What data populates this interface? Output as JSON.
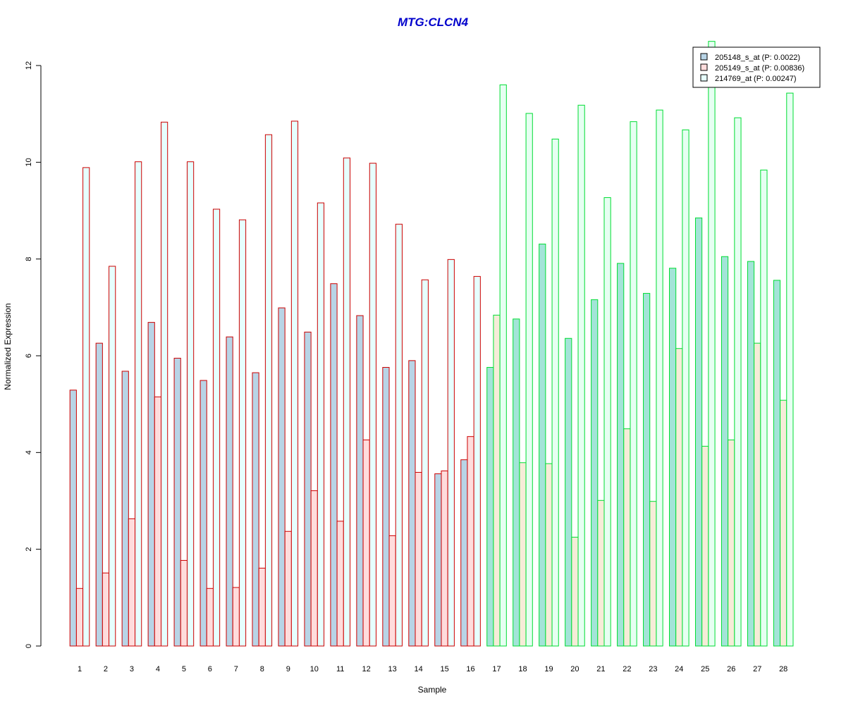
{
  "chart_data": {
    "type": "bar",
    "title": "MTG:CLCN4",
    "xlabel": "Sample",
    "ylabel": "Normalized Expression",
    "ylim": [
      0,
      12
    ],
    "yticks": [
      0,
      2,
      4,
      6,
      8,
      10,
      12
    ],
    "categories": [
      "1",
      "2",
      "3",
      "4",
      "5",
      "6",
      "7",
      "8",
      "9",
      "10",
      "11",
      "12",
      "13",
      "14",
      "15",
      "16",
      "17",
      "18",
      "19",
      "20",
      "21",
      "22",
      "23",
      "24",
      "25",
      "26",
      "27",
      "28"
    ],
    "series": [
      {
        "name": "205148_s_at (P: 0.0022)",
        "values": [
          5.29,
          6.26,
          5.68,
          6.69,
          5.95,
          5.49,
          6.39,
          5.65,
          6.99,
          6.49,
          7.49,
          6.83,
          5.76,
          5.9,
          3.56,
          3.85,
          5.76,
          6.76,
          8.31,
          6.36,
          7.16,
          7.91,
          7.29,
          7.81,
          8.85,
          8.05,
          7.95,
          7.56
        ]
      },
      {
        "name": "205149_s_at (P: 0.00836)",
        "values": [
          1.19,
          1.51,
          2.63,
          5.15,
          1.77,
          1.19,
          1.21,
          1.61,
          2.37,
          3.21,
          2.58,
          4.26,
          2.28,
          3.59,
          3.62,
          4.33,
          6.84,
          3.79,
          3.77,
          2.25,
          3.01,
          4.49,
          2.99,
          6.15,
          4.13,
          4.26,
          6.26,
          5.08
        ]
      },
      {
        "name": "214769_at (P: 0.00247)",
        "values": [
          9.89,
          7.85,
          10.01,
          10.83,
          10.01,
          9.03,
          8.81,
          10.57,
          10.85,
          9.16,
          10.09,
          9.98,
          8.72,
          7.57,
          7.99,
          7.64,
          11.6,
          11.01,
          10.48,
          11.18,
          9.27,
          10.84,
          11.08,
          10.67,
          12.5,
          10.92,
          9.84,
          11.43
        ]
      }
    ],
    "group_border_colors": [
      "#cc0000",
      "#00dd33"
    ],
    "group_split_after_sample": 16,
    "fill_colors": {
      "group1": [
        "#b8d4e6",
        "#ffdcdc",
        "#e6fffe"
      ],
      "group2": [
        "#a3e4d8",
        "#f6ecd8",
        "#e6fff2"
      ]
    },
    "legend_fill_colors": [
      "#b8d4e6",
      "#ffdcdc",
      "#e6fffe"
    ],
    "title_color": "#0000cc",
    "legend_position": "top-right",
    "grid": false
  }
}
